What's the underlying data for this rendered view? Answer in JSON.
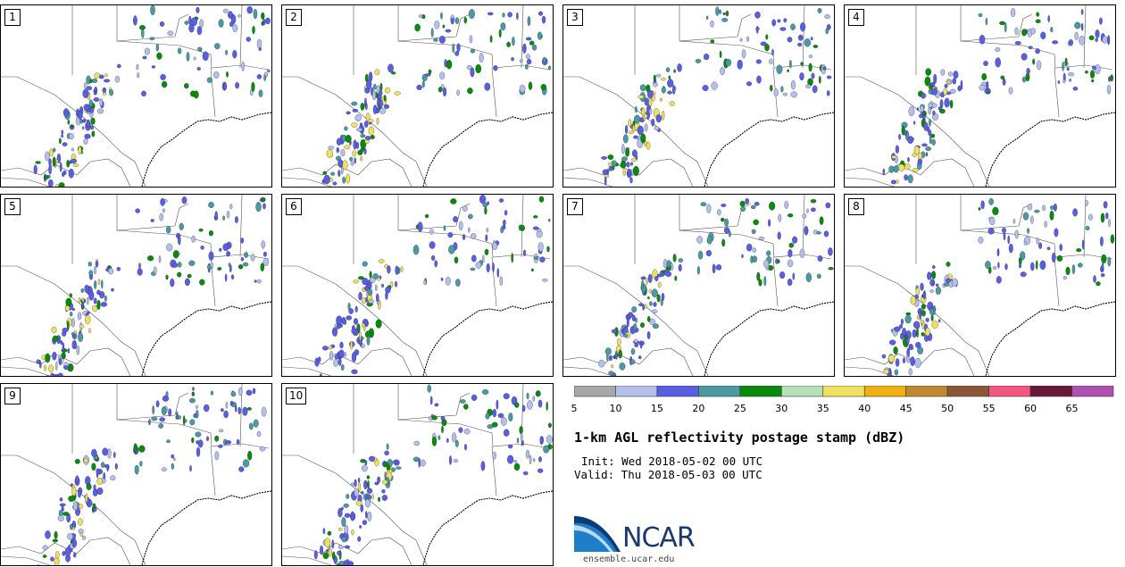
{
  "panels": [
    {
      "label": "1"
    },
    {
      "label": "2"
    },
    {
      "label": "3"
    },
    {
      "label": "4"
    },
    {
      "label": "5"
    },
    {
      "label": "6"
    },
    {
      "label": "7"
    },
    {
      "label": "8"
    },
    {
      "label": "9"
    },
    {
      "label": "10"
    }
  ],
  "colorbar": {
    "colors": [
      "#a8a8a8",
      "#b4c0ec",
      "#5a5ee0",
      "#4a9aa0",
      "#0a8a0a",
      "#b8e0b8",
      "#eee060",
      "#f0b010",
      "#c08830",
      "#8a5838",
      "#f45880",
      "#6a1838",
      "#b050b0"
    ],
    "ticks": [
      "5",
      "10",
      "15",
      "20",
      "25",
      "30",
      "35",
      "40",
      "45",
      "50",
      "55",
      "60",
      "65"
    ]
  },
  "title": "1-km AGL reflectivity postage stamp (dBZ)",
  "init": "Init: Wed 2018-05-02 00 UTC",
  "valid": "Valid: Thu 2018-05-03 00 UTC",
  "logo_text": "NCAR",
  "url": "ensemble.ucar.edu"
}
